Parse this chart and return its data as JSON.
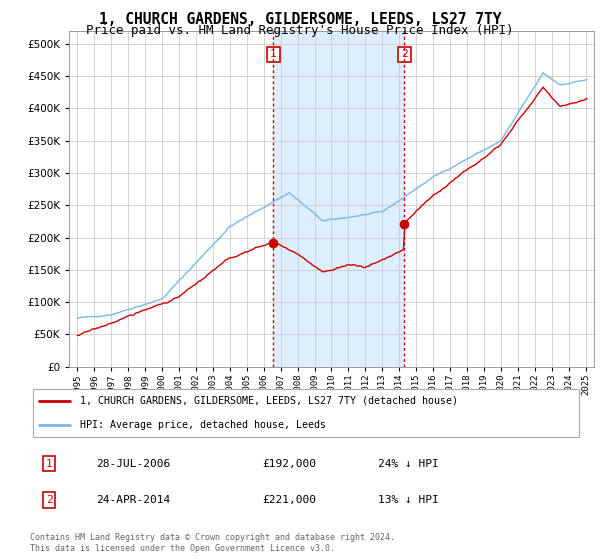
{
  "title": "1, CHURCH GARDENS, GILDERSOME, LEEDS, LS27 7TY",
  "subtitle": "Price paid vs. HM Land Registry's House Price Index (HPI)",
  "title_fontsize": 10.5,
  "subtitle_fontsize": 9,
  "background_color": "#ffffff",
  "plot_bg_color": "#ffffff",
  "grid_color": "#cccccc",
  "sale1_date_num": 2006.57,
  "sale1_price": 192000,
  "sale2_date_num": 2014.31,
  "sale2_price": 221000,
  "hpi_line_color": "#7ab8e8",
  "price_line_color": "#cc0000",
  "sale_marker_color": "#cc0000",
  "vline_color": "#cc0000",
  "shade_color": "#ddeeff",
  "legend_label_price": "1, CHURCH GARDENS, GILDERSOME, LEEDS, LS27 7TY (detached house)",
  "legend_label_hpi": "HPI: Average price, detached house, Leeds",
  "footer_text": "Contains HM Land Registry data © Crown copyright and database right 2024.\nThis data is licensed under the Open Government Licence v3.0.",
  "ylim": [
    0,
    520000
  ],
  "yticks": [
    0,
    50000,
    100000,
    150000,
    200000,
    250000,
    300000,
    350000,
    400000,
    450000,
    500000
  ],
  "xlim_start": 1994.5,
  "xlim_end": 2025.5
}
